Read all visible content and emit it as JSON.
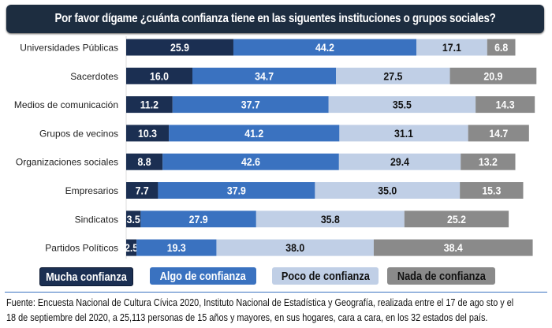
{
  "chart_data": {
    "type": "bar",
    "orientation": "horizontal",
    "stacked": true,
    "title": "Por favor dígame ¿cuánta confianza tiene en las siguentes instituciones o grupos sociales?",
    "categories": [
      "Universidades Públicas",
      "Sacerdotes",
      "Medios de comunicación",
      "Grupos de vecinos",
      "Organizaciones sociales",
      "Empresarios",
      "Sindicatos",
      "Partidos Políticos"
    ],
    "series": [
      {
        "name": "Mucha confianza",
        "color": "#1b2f52",
        "values": [
          25.9,
          16.0,
          11.2,
          10.3,
          8.8,
          7.7,
          3.5,
          2.5
        ]
      },
      {
        "name": "Algo de confianza",
        "color": "#3a72c0",
        "values": [
          44.2,
          34.7,
          37.7,
          41.2,
          42.6,
          37.9,
          27.9,
          19.3
        ]
      },
      {
        "name": "Poco de confianza",
        "color": "#c0cfe6",
        "values": [
          17.1,
          27.5,
          35.5,
          31.1,
          29.4,
          35.0,
          35.8,
          38.0
        ]
      },
      {
        "name": "Nada de confianza",
        "color": "#8a8a8a",
        "values": [
          6.8,
          20.9,
          14.3,
          14.7,
          13.2,
          15.3,
          25.2,
          38.4
        ]
      }
    ],
    "legend_position": "bottom",
    "grid": false
  },
  "footer": {
    "line1": "Fuente: Encuesta Nacional de Cultura Cívica 2020, Instituto Nacional de Estadística y Geografía, realizada entre el 17 de ago sto y el",
    "line2": "18 de septiembre del 2020, a 25,113 personas de 15 años y mayores, en sus hogares, cara a cara, en los 32 estados del país."
  }
}
